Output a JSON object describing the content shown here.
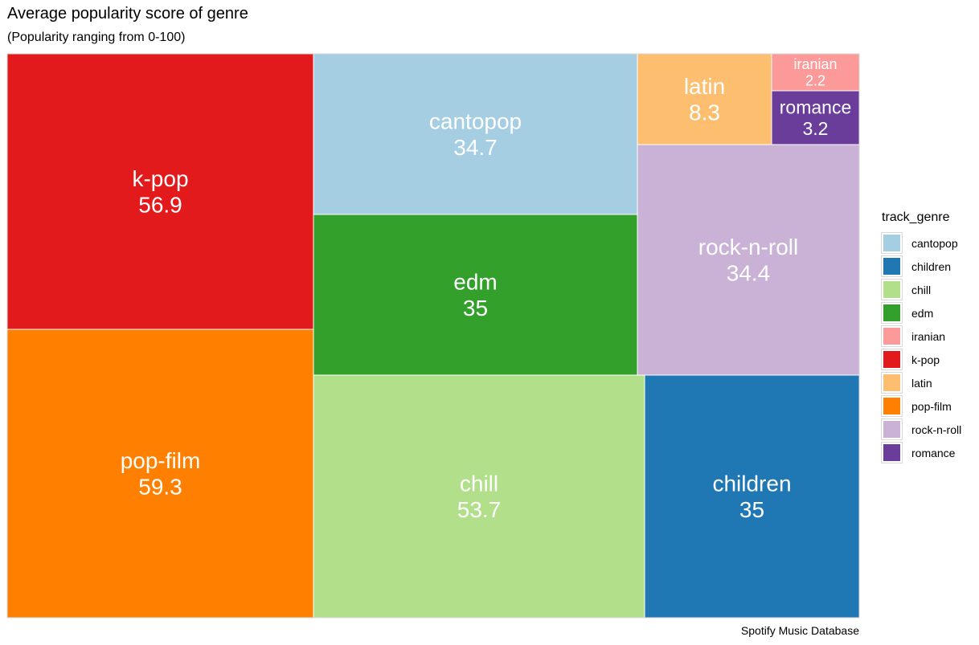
{
  "title": "Average popularity score of genre",
  "subtitle": "(Popularity ranging from 0-100)",
  "caption": "Spotify Music Database",
  "chart_data": {
    "type": "treemap",
    "title": "Average popularity score of genre",
    "subtitle": "(Popularity ranging from 0-100)",
    "legend_title": "track_genre",
    "legend_position": "right",
    "categories": [
      "pop-film",
      "k-pop",
      "chill",
      "cantopop",
      "edm",
      "children",
      "rock-n-roll",
      "latin",
      "romance",
      "iranian"
    ],
    "values": [
      59.3,
      56.9,
      53.7,
      34.7,
      35,
      35,
      34.4,
      8.3,
      3.2,
      2.2
    ],
    "value_labels": [
      "59.3",
      "56.9",
      "53.7",
      "34.7",
      "35",
      "35",
      "34.4",
      "8.3",
      "3.2",
      "2.2"
    ],
    "colors": {
      "cantopop": "#a6cee3",
      "children": "#1f78b4",
      "chill": "#b2df8a",
      "edm": "#33a02c",
      "iranian": "#fb9a99",
      "k-pop": "#e31a1c",
      "latin": "#fdbf6f",
      "pop-film": "#ff7f00",
      "rock-n-roll": "#cab2d6",
      "romance": "#6a3d9a"
    },
    "legend": [
      "cantopop",
      "children",
      "chill",
      "edm",
      "iranian",
      "k-pop",
      "latin",
      "pop-film",
      "rock-n-roll",
      "romance"
    ]
  }
}
